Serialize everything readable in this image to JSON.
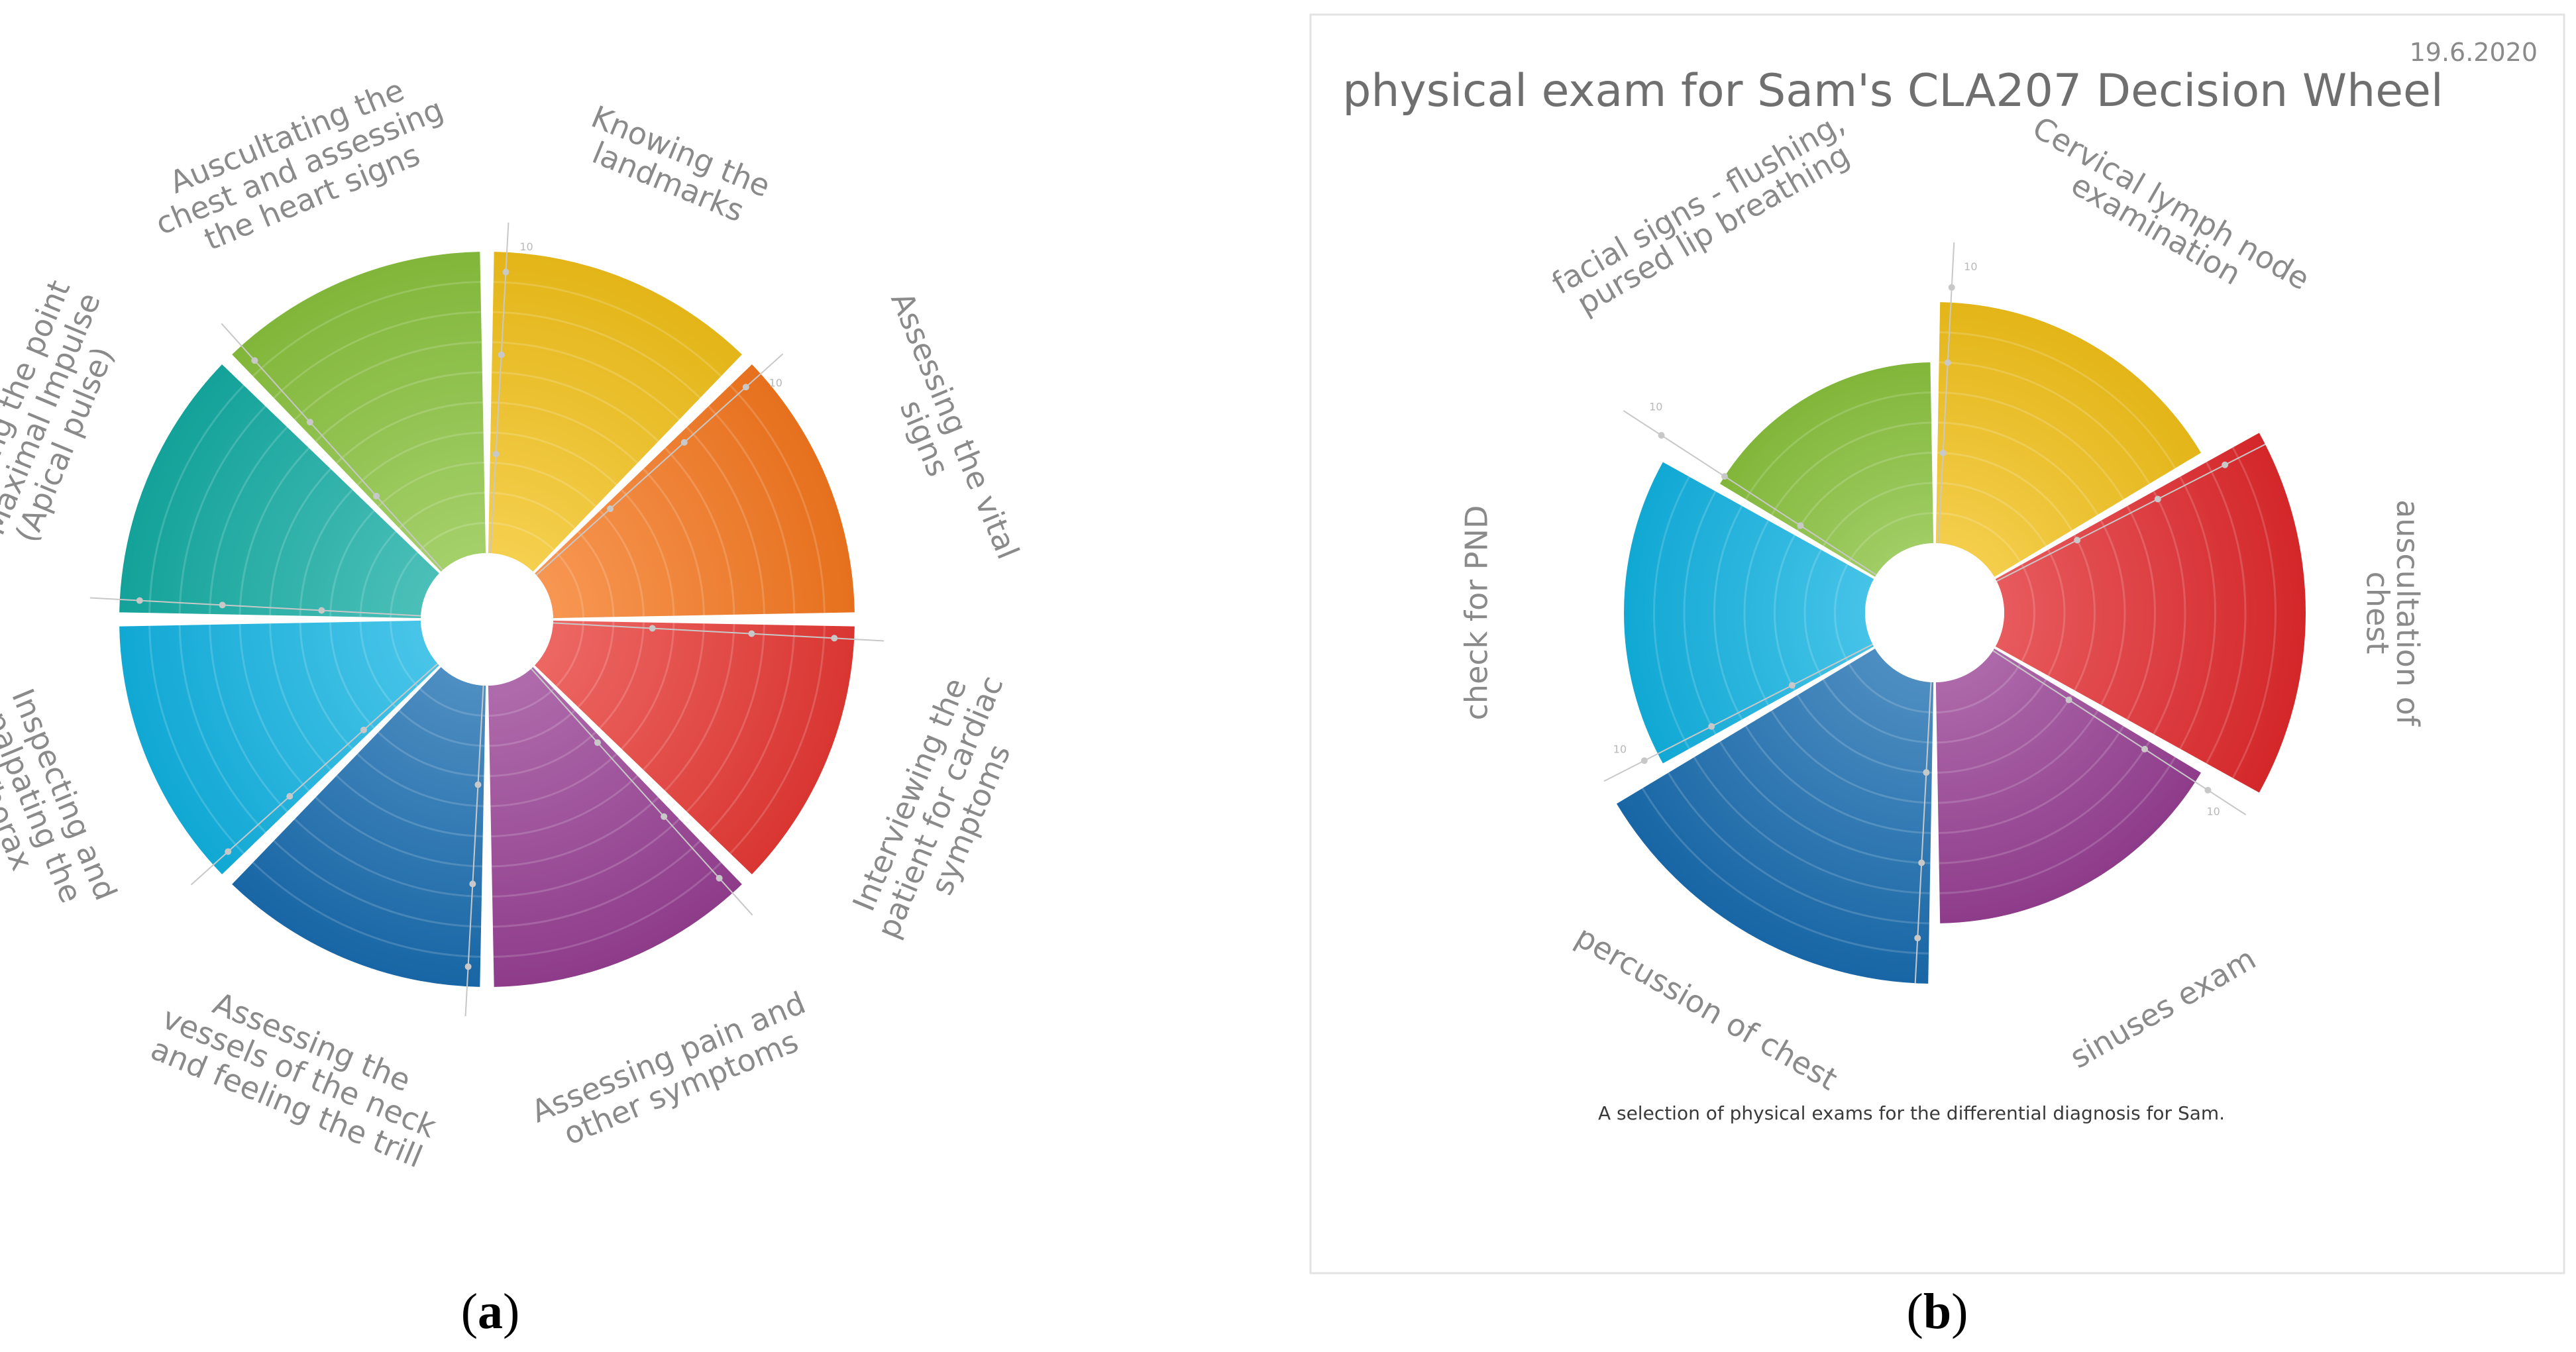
{
  "chart_data": [
    {
      "type": "polar-bar",
      "panel_label": "a",
      "r_max": 10,
      "segments": [
        {
          "label": [
            "Knowing the",
            "landmarks"
          ],
          "value": 10,
          "color": "#f7c51a",
          "tick": "10"
        },
        {
          "label": [
            "Assessing the vital",
            "signs"
          ],
          "value": 10,
          "color": "#fa7a1f",
          "tick": "10"
        },
        {
          "label": [
            "Interviewing the",
            "patient for cardiac",
            "symptoms"
          ],
          "value": 10,
          "color": "#ec3b36",
          "tick": ""
        },
        {
          "label": [
            "Assessing pain and",
            "other symptoms"
          ],
          "value": 10,
          "color": "#9a4196",
          "tick": ""
        },
        {
          "label": [
            "Assessing the",
            "vessels of the neck",
            "and feeling the trill"
          ],
          "value": 10,
          "color": "#1a6fb3",
          "tick": ""
        },
        {
          "label": [
            "Inspecting and",
            "palpating the",
            "Thorax"
          ],
          "value": 10,
          "color": "#13b7e6",
          "tick": ""
        },
        {
          "label": [
            "Assessing the point",
            "of Maximal Impulse",
            "(Apical pulse)"
          ],
          "value": 10,
          "color": "#15b0a6",
          "tick": ""
        },
        {
          "label": [
            "Auscultating the",
            "chest and assessing",
            "the heart signs"
          ],
          "value": 10,
          "color": "#8cc63f",
          "tick": ""
        }
      ]
    },
    {
      "type": "polar-bar",
      "panel_label": "b",
      "title": "physical exam for Sam's CLA207 Decision Wheel",
      "date": "19.6.2020",
      "caption": "A selection of physical exams for the differential diagnosis for Sam.",
      "r_max": 10,
      "segments": [
        {
          "label": [
            "Cervical lymph node",
            "examination"
          ],
          "value": 8,
          "color": "#f7c51a",
          "tick": "10"
        },
        {
          "label": [
            "auscultation of",
            "chest"
          ],
          "value": 10,
          "color": "#e52a2e",
          "tick": ""
        },
        {
          "label": [
            "sinuses exam"
          ],
          "value": 8,
          "color": "#9a4196",
          "tick": "10"
        },
        {
          "label": [
            "percussion of chest"
          ],
          "value": 10,
          "color": "#1a6fb3",
          "tick": ""
        },
        {
          "label": [
            "check for PND"
          ],
          "value": 8,
          "color": "#13b7e6",
          "tick": "10"
        },
        {
          "label": [
            "facial signs - flushing,",
            "pursed lip breathing"
          ],
          "value": 6,
          "color": "#8cc63f",
          "tick": "10"
        }
      ]
    }
  ]
}
